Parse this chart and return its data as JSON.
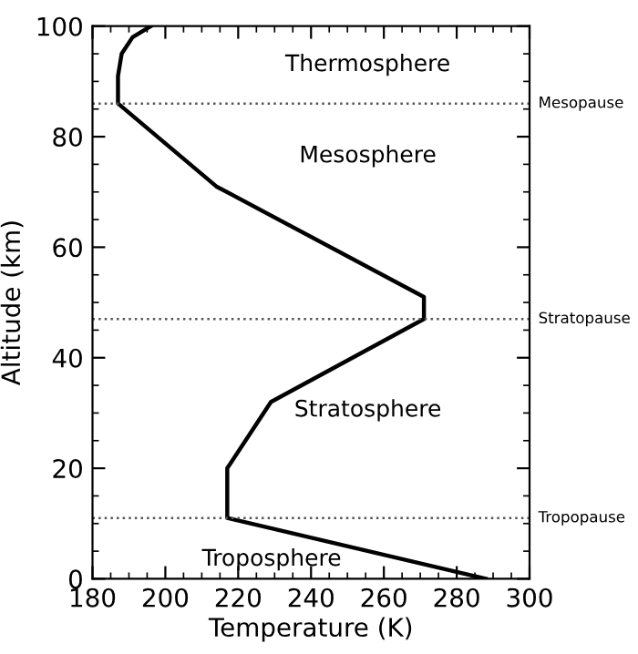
{
  "chart_data": {
    "type": "line",
    "xlabel": "Temperature (K)",
    "ylabel": "Altitude (km)",
    "series": [
      {
        "color": "#000000",
        "x": [
          288,
          217,
          217,
          229,
          271,
          271,
          214,
          187,
          187,
          188,
          191,
          196
        ],
        "values": [
          0,
          11,
          20,
          32,
          47,
          51,
          71,
          86,
          91,
          95,
          98,
          100
        ]
      }
    ],
    "xlim": [
      180,
      300
    ],
    "ylim": [
      0,
      100
    ],
    "xticks": [
      180,
      200,
      220,
      240,
      260,
      280,
      300
    ],
    "yticks": [
      0,
      20,
      40,
      60,
      80,
      100
    ],
    "ref_lines": [
      {
        "axis": "y",
        "value": 11,
        "label": "Tropopause",
        "color": "#555555",
        "line_style": "dotted"
      },
      {
        "axis": "y",
        "value": 47,
        "label": "Stratopause",
        "color": "#555555",
        "line_style": "dotted"
      },
      {
        "axis": "y",
        "value": 86,
        "label": "Mesopause",
        "color": "#555555",
        "line_style": "dotted"
      }
    ],
    "annotations": [
      "Thermosphere",
      "Mesosphere",
      "Stratosphere",
      "Troposphere"
    ],
    "grid": false,
    "legend": false,
    "marker": "none",
    "line_style": "solid"
  }
}
